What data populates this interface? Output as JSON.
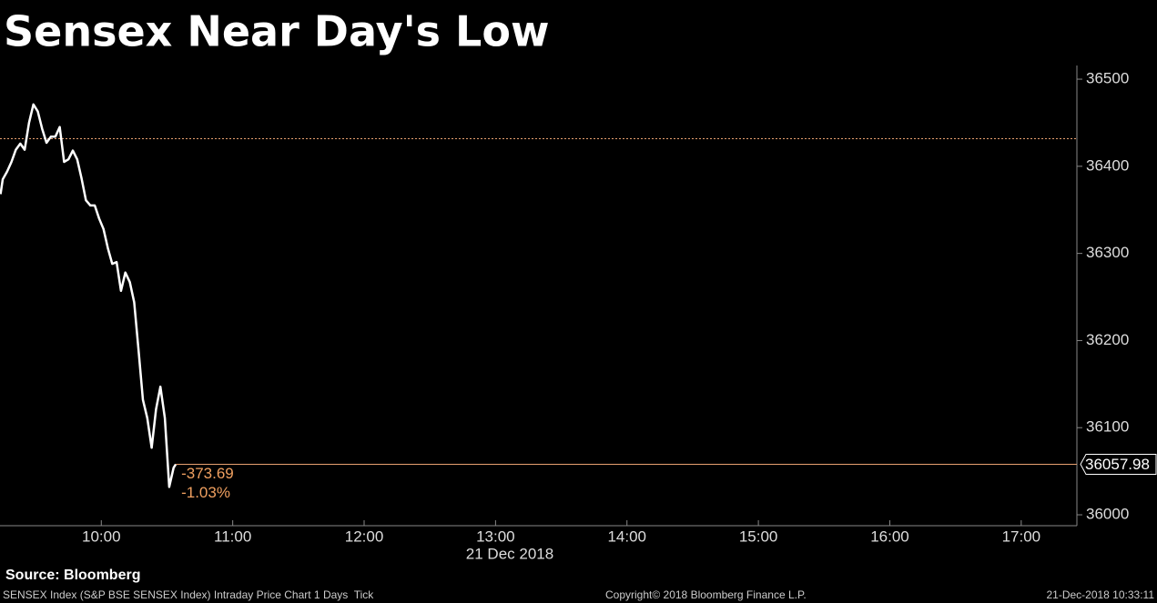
{
  "chart_data": {
    "type": "line",
    "title": "Sensex Near Day's Low",
    "x_label": "21 Dec 2018",
    "x": [
      554,
      555,
      557,
      559,
      561,
      563,
      565,
      567,
      569,
      571,
      573,
      575,
      577,
      579,
      581,
      583,
      585,
      587,
      589,
      591,
      593,
      595,
      597,
      599,
      601,
      603,
      605,
      607,
      609,
      611,
      613,
      615,
      617,
      619,
      621,
      623,
      625,
      627,
      629,
      631,
      633,
      634
    ],
    "series": [
      {
        "name": "SENSEX Index",
        "color": "#ffffff",
        "values": [
          36368,
          36385,
          36394,
          36405,
          36419,
          36426,
          36419,
          36450,
          36471,
          36463,
          36443,
          36427,
          36434,
          36434,
          36445,
          36405,
          36408,
          36418,
          36408,
          36386,
          36361,
          36355,
          36355,
          36340,
          36328,
          36306,
          36288,
          36290,
          36257,
          36278,
          36267,
          36244,
          36189,
          36132,
          36111,
          36077,
          36121,
          36147,
          36111,
          36032,
          36054,
          36057.98
        ]
      }
    ],
    "reference_line": 36431.67,
    "last_value": 36057.98,
    "annotations": [
      "-373.69",
      "-1.03%"
    ],
    "xlim": [
      553.75,
      1045.42
    ],
    "xticks": [
      {
        "value": 600,
        "label": "10:00"
      },
      {
        "value": 660,
        "label": "11:00"
      },
      {
        "value": 720,
        "label": "12:00"
      },
      {
        "value": 780,
        "label": "13:00"
      },
      {
        "value": 840,
        "label": "14:00"
      },
      {
        "value": 900,
        "label": "15:00"
      },
      {
        "value": 960,
        "label": "16:00"
      },
      {
        "value": 1020,
        "label": "17:00"
      }
    ],
    "ylim": [
      35987.5,
      36515.7
    ],
    "yticks": [
      36000,
      36100,
      36200,
      36300,
      36400,
      36500
    ],
    "source": "Source: Bloomberg",
    "description": "SENSEX Index (S&P BSE SENSEX Index) Intraday Price Chart 1 Days  Tick",
    "copyright": "Copyright© 2018 Bloomberg Finance L.P.",
    "timestamp": "21-Dec-2018 10:33:11"
  }
}
